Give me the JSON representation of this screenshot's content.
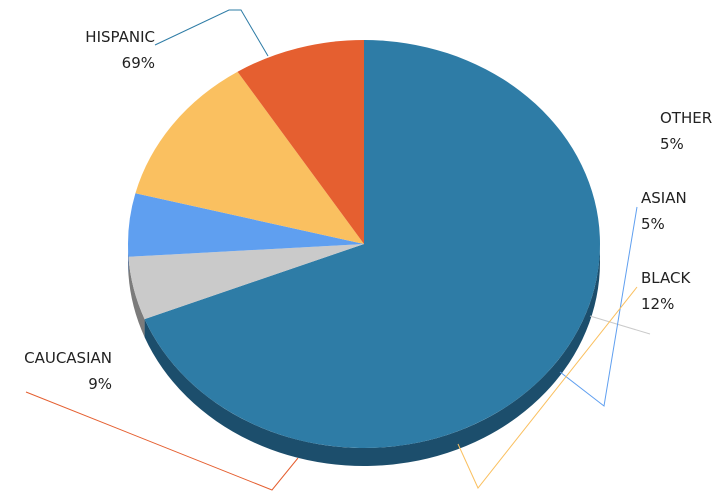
{
  "chart_data": {
    "type": "pie",
    "categories": [
      "HISPANIC",
      "OTHER",
      "ASIAN",
      "BLACK",
      "CAUCASIAN"
    ],
    "values": [
      69,
      5,
      5,
      12,
      9
    ],
    "value_labels": [
      "69%",
      "5%",
      "5%",
      "12%",
      "9%"
    ],
    "colors": [
      "#2e7ca6",
      "#cacaca",
      "#5f9ff0",
      "#fac060",
      "#e55f30"
    ],
    "side_colors": [
      "#1c4e6c",
      "#7b7b7b",
      "#3a6ab0",
      "#c98f2e",
      "#c4430f"
    ],
    "legend": "none",
    "grid": false
  }
}
